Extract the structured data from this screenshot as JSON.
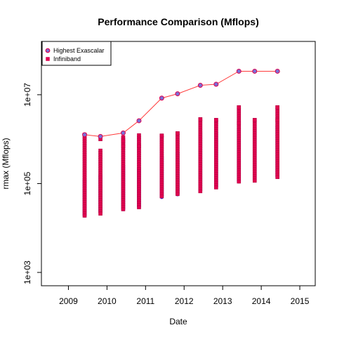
{
  "chart_data": {
    "type": "scatter",
    "title": "Performance Comparison (Mflops)",
    "xlabel": "Date",
    "ylabel": "rmax (Mflops)",
    "xlim": [
      2008.3,
      2015.4
    ],
    "ylim_log10": [
      2.7,
      8.2
    ],
    "y_scale": "log10",
    "x_ticks": [
      2009,
      2010,
      2011,
      2012,
      2013,
      2014,
      2015
    ],
    "y_ticks": [
      {
        "value": 1000,
        "label": "1e+03"
      },
      {
        "value": 100000,
        "label": "1e+05"
      },
      {
        "value": 10000000,
        "label": "1e+07"
      }
    ],
    "legend": {
      "position": "top-left",
      "entries": [
        "Highest Exascalar",
        "Infiniband"
      ]
    },
    "colors": {
      "highest_line": "#ff3b3b",
      "highest_point": "#7b6fd6",
      "infiniband": "#e0004f",
      "background_points": "#1a1aff"
    },
    "series": [
      {
        "name": "Highest Exascalar",
        "mode": "line+points",
        "x": [
          2009.42,
          2009.83,
          2010.42,
          2010.83,
          2011.42,
          2011.83,
          2012.42,
          2012.83,
          2013.42,
          2013.83,
          2014.42
        ],
        "y": [
          1260000,
          1150000,
          1380000,
          2600000,
          8400000,
          10500000,
          16300000,
          17200000,
          33800000,
          33800000,
          33800000
        ]
      }
    ],
    "background_systems": {
      "x": [
        2009.42,
        2009.83,
        2010.42,
        2010.83,
        2011.42,
        2011.83,
        2012.42,
        2012.83,
        2013.42,
        2013.83,
        2014.42
      ],
      "y_min": [
        18000,
        22000,
        26000,
        29000,
        48000,
        56000,
        68000,
        80000,
        104000,
        120000,
        135000
      ],
      "y_max": [
        120000,
        150000,
        250000,
        220000,
        400000,
        500000,
        1400000,
        1400000,
        1700000,
        1700000,
        2000000
      ]
    },
    "infiniband_systems": {
      "x": [
        2009.42,
        2009.83,
        2010.42,
        2010.83,
        2011.42,
        2011.83,
        2012.42,
        2012.83,
        2013.42,
        2013.83,
        2014.42
      ],
      "y_min": [
        17000,
        21000,
        25000,
        28000,
        47000,
        55000,
        67000,
        79000,
        100000,
        116000,
        132000
      ],
      "y_max": [
        1260000,
        550000,
        1100000,
        1220000,
        1200000,
        1350000,
        2800000,
        2700000,
        5200000,
        2700000,
        5200000
      ],
      "outliers": [
        [],
        [
          1000000
        ],
        [
          700000,
          900000
        ],
        [
          700000
        ],
        [
          1200000
        ],
        [
          1350000
        ],
        [
          2800000
        ],
        [
          2700000
        ],
        [
          5200000,
          2300000
        ],
        [
          2700000
        ],
        [
          5200000,
          2700000
        ]
      ]
    }
  }
}
